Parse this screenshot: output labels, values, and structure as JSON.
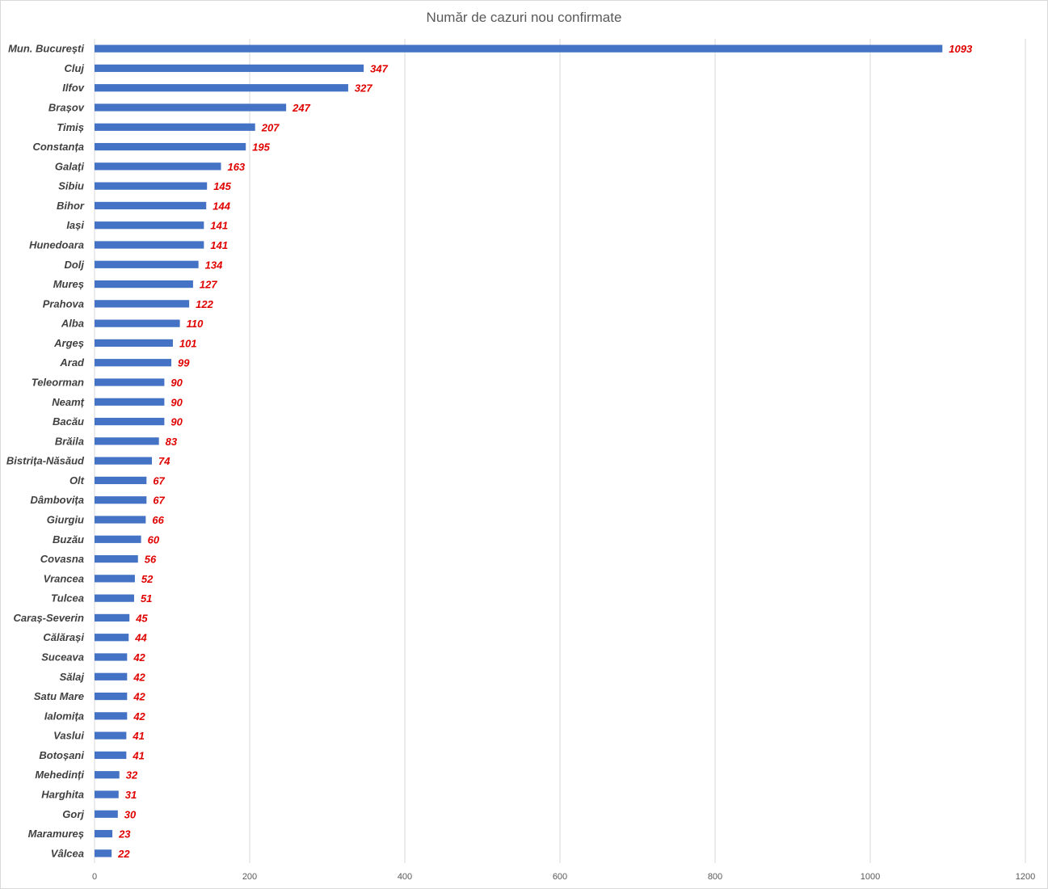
{
  "chart_data": {
    "type": "bar",
    "orientation": "horizontal",
    "title": "Număr de cazuri nou confirmate",
    "categories": [
      "Mun. București",
      "Cluj",
      "Ilfov",
      "Brașov",
      "Timiș",
      "Constanța",
      "Galați",
      "Sibiu",
      "Bihor",
      "Iași",
      "Hunedoara",
      "Dolj",
      "Mureș",
      "Prahova",
      "Alba",
      "Argeș",
      "Arad",
      "Teleorman",
      "Neamț",
      "Bacău",
      "Brăila",
      "Bistrița-Năsăud",
      "Olt",
      "Dâmbovița",
      "Giurgiu",
      "Buzău",
      "Covasna",
      "Vrancea",
      "Tulcea",
      "Caraș-Severin",
      "Călărași",
      "Suceava",
      "Sălaj",
      "Satu Mare",
      "Ialomița",
      "Vaslui",
      "Botoșani",
      "Mehedinți",
      "Harghita",
      "Gorj",
      "Maramureș",
      "Vâlcea"
    ],
    "values": [
      1093,
      347,
      327,
      247,
      207,
      195,
      163,
      145,
      144,
      141,
      141,
      134,
      127,
      122,
      110,
      101,
      99,
      90,
      90,
      90,
      83,
      74,
      67,
      67,
      66,
      60,
      56,
      52,
      51,
      45,
      44,
      42,
      42,
      42,
      42,
      41,
      41,
      32,
      31,
      30,
      23,
      22
    ],
    "xticks": [
      "0",
      "200",
      "400",
      "600",
      "800",
      "1000",
      "1200"
    ],
    "xlim": [
      0,
      1200
    ],
    "grid": true,
    "legend": "none",
    "colors": {
      "bar": "#4472c4",
      "value_label": "#e00000",
      "category_label": "#404040",
      "gridline": "#d9d9d9"
    }
  }
}
